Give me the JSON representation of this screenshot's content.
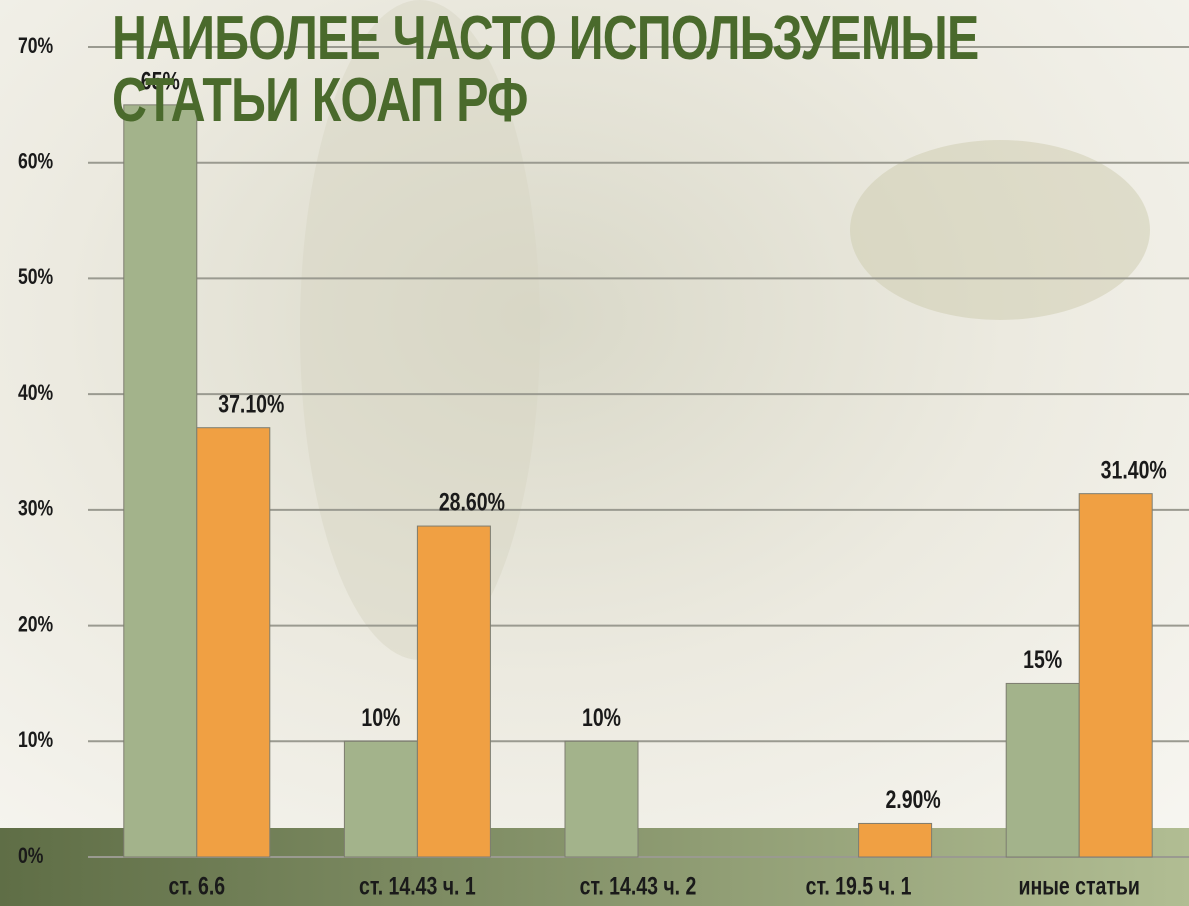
{
  "chart_data": {
    "type": "bar",
    "title": "НАИБОЛЕЕ ЧАСТО ИСПОЛЬЗУЕМЫЕ СТАТЬИ КОАП РФ",
    "categories": [
      "ст. 6.6",
      "ст. 14.43 ч. 1",
      "ст. 14.43 ч. 2",
      "ст. 19.5 ч. 1",
      "иные статьи"
    ],
    "series": [
      {
        "color": "#a3b38b",
        "values": [
          65,
          10,
          10,
          null,
          15
        ],
        "value_labels": [
          "65%",
          "10%",
          "10%",
          null,
          "15%"
        ]
      },
      {
        "color": "#f0a043",
        "values": [
          37.1,
          28.6,
          null,
          2.9,
          31.4
        ],
        "value_labels": [
          "37.10%",
          "28.60%",
          null,
          "2.90%",
          "31.40%"
        ]
      }
    ],
    "ylim": [
      0,
      70
    ],
    "yticks": [
      {
        "value": 0,
        "label": "0%"
      },
      {
        "value": 10,
        "label": "10%"
      },
      {
        "value": 20,
        "label": "20%"
      },
      {
        "value": 30,
        "label": "30%"
      },
      {
        "value": 40,
        "label": "40%"
      },
      {
        "value": 50,
        "label": "50%"
      },
      {
        "value": 60,
        "label": "60%"
      },
      {
        "value": 70,
        "label": "70%"
      }
    ],
    "grid": true
  }
}
